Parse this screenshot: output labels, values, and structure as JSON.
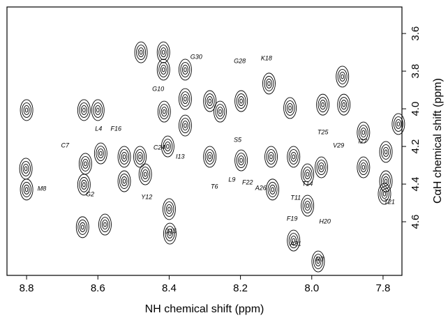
{
  "chart_data": {
    "type": "contour",
    "xlabel": "NH chemical shift (ppm)",
    "ylabel": "CαH chemical shift (ppm)",
    "xlim": [
      8.855,
      7.747
    ],
    "ylim": [
      3.459,
      4.885
    ],
    "xticks": [
      8.8,
      8.6,
      8.4,
      8.2,
      {
        "value": 8,
        "label": "8.0"
      },
      7.8
    ],
    "yticks": [
      3.6,
      3.8,
      {
        "value": 4,
        "label": "4.0"
      },
      4.2,
      4.4,
      4.6
    ],
    "color": "#000000",
    "peaks": [
      {
        "x": 8.8,
        "y": 4.007
      },
      {
        "x": 8.802,
        "y": 4.318
      },
      {
        "x": 8.8,
        "y": 4.429
      },
      {
        "x": 8.639,
        "y": 4.007
      },
      {
        "x": 8.635,
        "y": 4.292
      },
      {
        "x": 8.6,
        "y": 4.007
      },
      {
        "x": 8.592,
        "y": 4.237
      },
      {
        "x": 8.639,
        "y": 4.403
      },
      {
        "x": 8.58,
        "y": 4.615
      },
      {
        "x": 8.643,
        "y": 4.629
      },
      {
        "x": 8.526,
        "y": 4.255
      },
      {
        "x": 8.526,
        "y": 4.385
      },
      {
        "x": 8.416,
        "y": 3.7
      },
      {
        "x": 8.416,
        "y": 3.792
      },
      {
        "x": 8.414,
        "y": 4.015
      },
      {
        "x": 8.404,
        "y": 4.2
      },
      {
        "x": 8.4,
        "y": 4.533
      },
      {
        "x": 8.398,
        "y": 4.663
      },
      {
        "x": 8.355,
        "y": 3.792
      },
      {
        "x": 8.355,
        "y": 3.948
      },
      {
        "x": 8.355,
        "y": 4.089
      },
      {
        "x": 8.286,
        "y": 3.959
      },
      {
        "x": 8.286,
        "y": 4.255
      },
      {
        "x": 8.257,
        "y": 4.015
      },
      {
        "x": 8.198,
        "y": 3.959
      },
      {
        "x": 8.198,
        "y": 4.274
      },
      {
        "x": 8.12,
        "y": 3.866
      },
      {
        "x": 8.114,
        "y": 4.255
      },
      {
        "x": 8.11,
        "y": 4.429
      },
      {
        "x": 8.061,
        "y": 3.996
      },
      {
        "x": 8.051,
        "y": 4.255
      },
      {
        "x": 8.012,
        "y": 4.348
      },
      {
        "x": 8.012,
        "y": 4.515
      },
      {
        "x": 7.973,
        "y": 4.311
      },
      {
        "x": 7.969,
        "y": 3.978
      },
      {
        "x": 7.914,
        "y": 3.829
      },
      {
        "x": 7.91,
        "y": 3.978
      },
      {
        "x": 7.855,
        "y": 4.126
      },
      {
        "x": 7.855,
        "y": 4.311
      },
      {
        "x": 7.792,
        "y": 4.385
      },
      {
        "x": 7.796,
        "y": 4.452
      },
      {
        "x": 7.792,
        "y": 4.229
      },
      {
        "x": 7.757,
        "y": 4.081
      },
      {
        "x": 7.982,
        "y": 4.811
      },
      {
        "x": 8.051,
        "y": 4.7
      },
      {
        "x": 8.479,
        "y": 3.7
      },
      {
        "x": 8.482,
        "y": 4.255
      },
      {
        "x": 8.467,
        "y": 4.348
      }
    ],
    "annotations": [
      {
        "text": "G30",
        "x": 8.324,
        "y": 3.726
      },
      {
        "text": "G28",
        "x": 8.202,
        "y": 3.748
      },
      {
        "text": "K18",
        "x": 8.127,
        "y": 3.733
      },
      {
        "text": "G10",
        "x": 8.431,
        "y": 3.896
      },
      {
        "text": "L4",
        "x": 8.598,
        "y": 4.107
      },
      {
        "text": "F16",
        "x": 8.549,
        "y": 4.107
      },
      {
        "text": "C7",
        "x": 8.692,
        "y": 4.196
      },
      {
        "text": "C24",
        "x": 8.428,
        "y": 4.207
      },
      {
        "text": "I13",
        "x": 8.369,
        "y": 4.255
      },
      {
        "text": "S5",
        "x": 8.208,
        "y": 4.166
      },
      {
        "text": "T25",
        "x": 7.969,
        "y": 4.126
      },
      {
        "text": "V29",
        "x": 7.925,
        "y": 4.196
      },
      {
        "text": "I27",
        "x": 7.857,
        "y": 4.174
      },
      {
        "text": "M8",
        "x": 8.757,
        "y": 4.426
      },
      {
        "text": "G2",
        "x": 8.622,
        "y": 4.455
      },
      {
        "text": "Y12",
        "x": 8.463,
        "y": 4.47
      },
      {
        "text": "T6",
        "x": 8.273,
        "y": 4.415
      },
      {
        "text": "L9",
        "x": 8.224,
        "y": 4.378
      },
      {
        "text": "F22",
        "x": 8.18,
        "y": 4.392
      },
      {
        "text": "A26",
        "x": 8.143,
        "y": 4.422
      },
      {
        "text": "T14",
        "x": 8.012,
        "y": 4.4
      },
      {
        "text": "T11",
        "x": 8.045,
        "y": 4.474
      },
      {
        "text": "T21",
        "x": 7.782,
        "y": 4.496
      },
      {
        "text": "H20",
        "x": 7.963,
        "y": 4.6
      },
      {
        "text": "F19",
        "x": 8.055,
        "y": 4.585
      },
      {
        "text": "D15",
        "x": 8.396,
        "y": 4.652
      },
      {
        "text": "A31",
        "x": 8.045,
        "y": 4.718
      },
      {
        "text": "N3",
        "x": 7.978,
        "y": 4.8
      }
    ]
  }
}
